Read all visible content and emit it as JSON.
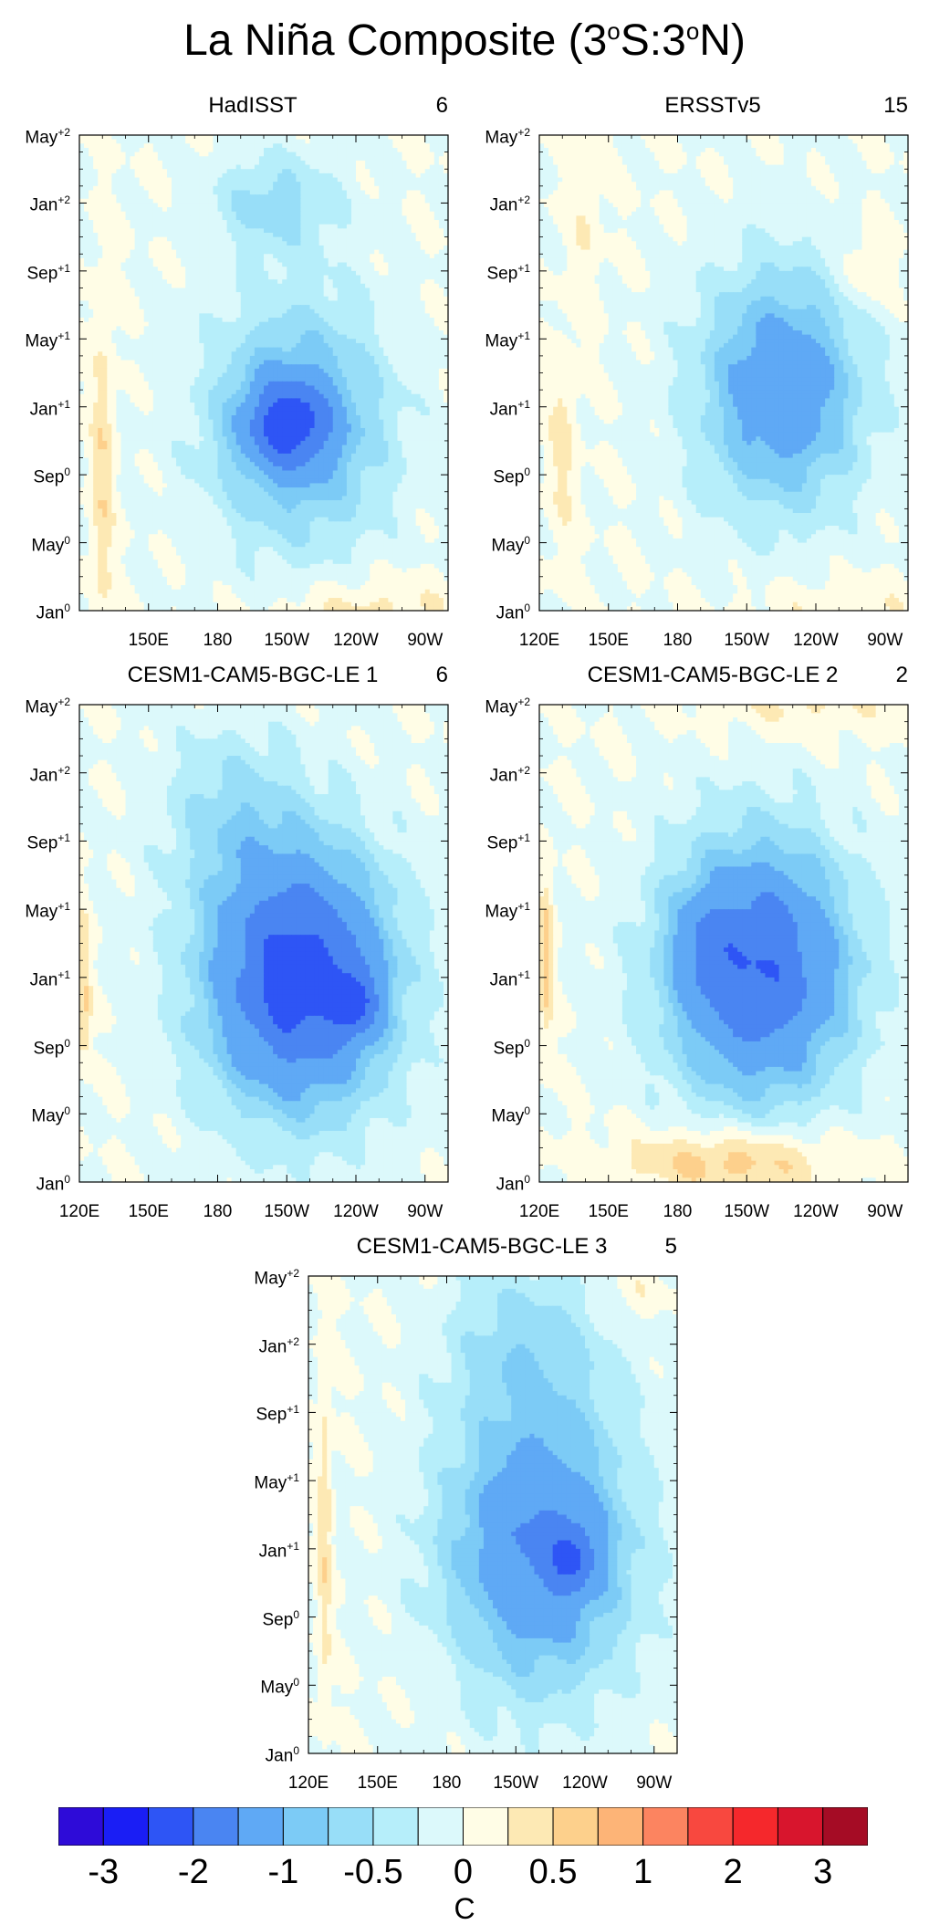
{
  "chart_data": {
    "type": "heatmap",
    "title": "La Niña Composite (3°S:3°N)",
    "title_parts": {
      "main": "La Niña Composite (3",
      "d1": "o",
      "mid": "S:3",
      "d2": "o",
      "end": "N)"
    },
    "colorbar": {
      "unit": "C",
      "tick_labels": [
        "-3",
        "-2",
        "-1",
        "-0.5",
        "0",
        "0.5",
        "1",
        "2",
        "3"
      ],
      "levels": [
        -3.5,
        -3,
        -2.5,
        -2,
        -1.5,
        -1,
        -0.75,
        -0.5,
        -0.25,
        0,
        0.25,
        0.5,
        0.75,
        1,
        1.5,
        2,
        2.5,
        3,
        3.5
      ],
      "colors": [
        "#2e0bd8",
        "#1a1ef5",
        "#2e55f5",
        "#4a85f2",
        "#5fa9f5",
        "#7ccbf6",
        "#98def8",
        "#b6eefa",
        "#dcf9fb",
        "#fffde6",
        "#fde9b4",
        "#fdd08c",
        "#fdb477",
        "#fc8460",
        "#f8483f",
        "#f5282c",
        "#d8152d",
        "#a50c25"
      ]
    },
    "y_axis": {
      "ticks": [
        {
          "m": "Jan",
          "s": "0"
        },
        {
          "m": "May",
          "s": "0"
        },
        {
          "m": "Sep",
          "s": "0"
        },
        {
          "m": "Jan",
          "s": "+1"
        },
        {
          "m": "May",
          "s": "+1"
        },
        {
          "m": "Sep",
          "s": "+1"
        },
        {
          "m": "Jan",
          "s": "+2"
        },
        {
          "m": "May",
          "s": "+2"
        }
      ]
    },
    "x_axis": {
      "ticks": [
        "120E",
        "150E",
        "180",
        "150W",
        "120W",
        "90W"
      ],
      "range_deg_east": [
        120,
        280
      ],
      "tick_values": [
        120,
        150,
        180,
        210,
        240,
        270
      ]
    },
    "panels": [
      {
        "name": "HadISST",
        "count": "6",
        "x_tick_labels": [
          "",
          "150E",
          "180",
          "150W",
          "120W",
          "90W"
        ],
        "blobs": [
          {
            "lon": 215,
            "t": 11,
            "slon": 38,
            "st": 7,
            "a": -1.2
          },
          {
            "lon": 210,
            "t": 11,
            "slon": 18,
            "st": 2.5,
            "a": -1.3
          },
          {
            "lon": 205,
            "t": 24,
            "slon": 28,
            "st": 3,
            "a": -0.6
          },
          {
            "lon": 130,
            "t": 8,
            "slon": 5,
            "st": 10,
            "a": 0.45
          },
          {
            "lon": 245,
            "t": 0,
            "slon": 40,
            "st": 2,
            "a": 0.35
          }
        ]
      },
      {
        "name": "ERSSTv5",
        "count": "15",
        "x_tick_labels": [
          "120E",
          "150E",
          "180",
          "150W",
          "120W",
          "90W"
        ],
        "blobs": [
          {
            "lon": 225,
            "t": 13,
            "slon": 35,
            "st": 7,
            "a": -1.4
          },
          {
            "lon": 130,
            "t": 10,
            "slon": 6,
            "st": 6,
            "a": 0.35
          },
          {
            "lon": 140,
            "t": 23,
            "slon": 6,
            "st": 5,
            "a": 0.25
          },
          {
            "lon": 262,
            "t": 20,
            "slon": 12,
            "st": 2.5,
            "a": 0.35
          },
          {
            "lon": 250,
            "t": 0,
            "slon": 40,
            "st": 2,
            "a": 0.25
          }
        ]
      },
      {
        "name": "CESM1-CAM5-BGC-LE 1",
        "count": "6",
        "x_tick_labels": [
          "120E",
          "150E",
          "180",
          "150W",
          "120W",
          "90W"
        ],
        "blobs": [
          {
            "lon": 215,
            "t": 12,
            "slon": 40,
            "st": 7.5,
            "a": -2.3
          },
          {
            "lon": 240,
            "t": 10.5,
            "slon": 10,
            "st": 2,
            "a": -0.9
          },
          {
            "lon": 185,
            "t": 22,
            "slon": 30,
            "st": 5,
            "a": -0.5
          },
          {
            "lon": 122,
            "t": 13,
            "slon": 3,
            "st": 3,
            "a": 0.5
          },
          {
            "lon": 122,
            "t": 9,
            "slon": 3,
            "st": 2,
            "a": 0.45
          }
        ]
      },
      {
        "name": "CESM1-CAM5-BGC-LE 2",
        "count": "2",
        "x_tick_labels": [
          "120E",
          "150E",
          "180",
          "150W",
          "120W",
          "90W"
        ],
        "blobs": [
          {
            "lon": 215,
            "t": 12.5,
            "slon": 40,
            "st": 7.5,
            "a": -2.0
          },
          {
            "lon": 190,
            "t": 14,
            "slon": 12,
            "st": 3,
            "a": -0.4
          },
          {
            "lon": 205,
            "t": 1.2,
            "slon": 45,
            "st": 2,
            "a": 0.75
          },
          {
            "lon": 123,
            "t": 13,
            "slon": 3,
            "st": 5,
            "a": 0.6
          },
          {
            "lon": 235,
            "t": 28,
            "slon": 40,
            "st": 2,
            "a": 0.3
          }
        ]
      },
      {
        "name": "CESM1-CAM5-BGC-LE 3",
        "count": "5",
        "x_tick_labels": [
          "120E",
          "150E",
          "180",
          "150W",
          "120W",
          "90W"
        ],
        "blobs": [
          {
            "lon": 220,
            "t": 12,
            "slon": 40,
            "st": 8,
            "a": -1.6
          },
          {
            "lon": 235,
            "t": 11.5,
            "slon": 10,
            "st": 2,
            "a": -0.8
          },
          {
            "lon": 215,
            "t": 24,
            "slon": 35,
            "st": 5,
            "a": -0.6
          },
          {
            "lon": 127,
            "t": 13,
            "slon": 3,
            "st": 10,
            "a": 0.45
          },
          {
            "lon": 262,
            "t": 27,
            "slon": 12,
            "st": 1.5,
            "a": 0.25
          }
        ]
      }
    ]
  }
}
